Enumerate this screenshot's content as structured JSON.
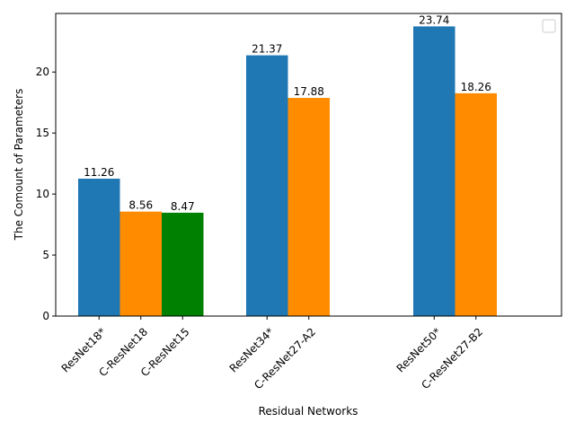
{
  "chart_data": {
    "type": "bar",
    "title": "",
    "xlabel": "Residual Networks",
    "ylabel": "The Comount of Parameters",
    "ylim": [
      0,
      24.8
    ],
    "yticks": [
      0,
      5,
      10,
      15,
      20
    ],
    "grid": false,
    "legend": {
      "placement": "upper right",
      "entries": []
    },
    "colors": {
      "blue": "#1f77b4",
      "orange": "#ff8c00",
      "green": "#008000"
    },
    "groups": [
      {
        "bars": [
          {
            "label": "ResNet18*",
            "value": 11.26,
            "value_text": "11.26",
            "color": "blue"
          },
          {
            "label": "C-ResNet18",
            "value": 8.56,
            "value_text": "8.56",
            "color": "orange"
          },
          {
            "label": "C-ResNet15",
            "value": 8.47,
            "value_text": "8.47",
            "color": "green"
          }
        ]
      },
      {
        "bars": [
          {
            "label": "ResNet34*",
            "value": 21.37,
            "value_text": "21.37",
            "color": "blue"
          },
          {
            "label": "C-ResNet27-A2",
            "value": 17.88,
            "value_text": "17.88",
            "color": "orange"
          }
        ]
      },
      {
        "bars": [
          {
            "label": "ResNet50*",
            "value": 23.74,
            "value_text": "23.74",
            "color": "blue"
          },
          {
            "label": "C-ResNet27-B2",
            "value": 18.26,
            "value_text": "18.26",
            "color": "orange"
          }
        ]
      }
    ]
  }
}
